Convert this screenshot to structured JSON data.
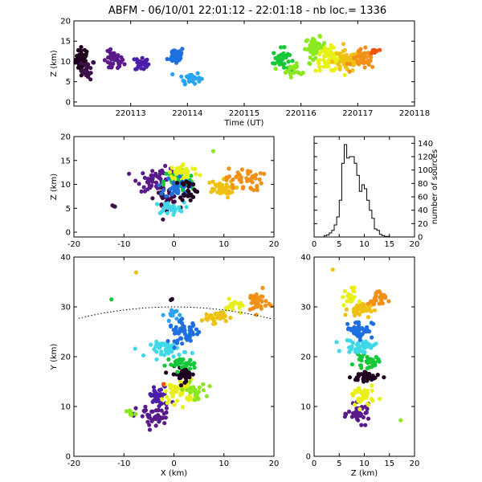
{
  "title": "ABFM - 06/10/01 22:01:12 - 22:01:18 - nb loc.=   1336",
  "colors": {
    "ramp": [
      "#200020",
      "#3c1048",
      "#5a1a8a",
      "#4b1fa8",
      "#1e6fe0",
      "#2aa3f0",
      "#3fd8e8",
      "#14c838",
      "#8ae81e",
      "#e8f018",
      "#f0c010",
      "#f09018",
      "#ee5512"
    ]
  },
  "chart_data": [
    {
      "id": "time-height",
      "type": "scatter",
      "xlabel": "Time (UT)",
      "ylabel": "Z (km)",
      "xlim": [
        220112.0,
        220118.0
      ],
      "ylim": [
        -1,
        20
      ],
      "xticks": [
        220113,
        220114,
        220115,
        220116,
        220117,
        220118
      ],
      "xtick_labels": [
        "220113",
        "220114",
        "220115",
        "220116",
        "220117",
        "220118"
      ],
      "yticks": [
        0,
        5,
        10,
        15,
        20
      ],
      "clusters": [
        {
          "x": 220112.15,
          "y": 10.5,
          "sx": 0.1,
          "sy": 2.5,
          "n": 40,
          "color": 0
        },
        {
          "x": 220112.25,
          "y": 8.0,
          "sx": 0.1,
          "sy": 2.0,
          "n": 20,
          "color": 1
        },
        {
          "x": 220112.7,
          "y": 10.0,
          "sx": 0.15,
          "sy": 2.0,
          "n": 40,
          "color": 2
        },
        {
          "x": 220113.2,
          "y": 9.5,
          "sx": 0.1,
          "sy": 1.6,
          "n": 25,
          "color": 3
        },
        {
          "x": 220113.8,
          "y": 11.5,
          "sx": 0.12,
          "sy": 1.8,
          "n": 35,
          "color": 4
        },
        {
          "x": 220114.05,
          "y": 6.0,
          "sx": 0.15,
          "sy": 1.2,
          "n": 30,
          "color": 5
        },
        {
          "x": 220115.65,
          "y": 10.5,
          "sx": 0.12,
          "sy": 2.2,
          "n": 35,
          "color": 7
        },
        {
          "x": 220115.9,
          "y": 8.0,
          "sx": 0.2,
          "sy": 1.5,
          "n": 20,
          "color": 8
        },
        {
          "x": 220116.25,
          "y": 13.5,
          "sx": 0.15,
          "sy": 2.0,
          "n": 45,
          "color": 8
        },
        {
          "x": 220116.5,
          "y": 10.5,
          "sx": 0.2,
          "sy": 2.5,
          "n": 60,
          "color": 9
        },
        {
          "x": 220116.8,
          "y": 10.0,
          "sx": 0.2,
          "sy": 2.2,
          "n": 55,
          "color": 10
        },
        {
          "x": 220117.1,
          "y": 10.5,
          "sx": 0.18,
          "sy": 2.0,
          "n": 45,
          "color": 11
        },
        {
          "x": 220117.3,
          "y": 12.5,
          "sx": 0.06,
          "sy": 0.8,
          "n": 8,
          "color": 12
        }
      ]
    },
    {
      "id": "x-z",
      "type": "scatter",
      "xlabel": "",
      "ylabel": "Z (km)",
      "xlim": [
        -20,
        20
      ],
      "ylim": [
        -1,
        20
      ],
      "xticks": [
        -20,
        -10,
        0,
        10,
        20
      ],
      "yticks": [
        0,
        5,
        10,
        15,
        20
      ],
      "clusters": [
        {
          "x": -3.0,
          "y": 11.0,
          "sx": 3.5,
          "sy": 2.0,
          "n": 60,
          "color": 2
        },
        {
          "x": -1.5,
          "y": 7.0,
          "sx": 2.0,
          "sy": 1.8,
          "n": 30,
          "color": 1
        },
        {
          "x": -1.0,
          "y": 5.0,
          "sx": 2.5,
          "sy": 1.0,
          "n": 25,
          "color": 6
        },
        {
          "x": 1.0,
          "y": 10.5,
          "sx": 2.5,
          "sy": 2.5,
          "n": 60,
          "color": 7
        },
        {
          "x": 2.0,
          "y": 12.5,
          "sx": 2.5,
          "sy": 1.5,
          "n": 45,
          "color": 9
        },
        {
          "x": 0.5,
          "y": 9.5,
          "sx": 2.0,
          "sy": 2.0,
          "n": 35,
          "color": 4
        },
        {
          "x": 3.0,
          "y": 9.0,
          "sx": 1.5,
          "sy": 2.0,
          "n": 25,
          "color": 0
        },
        {
          "x": 9.0,
          "y": 9.0,
          "sx": 2.5,
          "sy": 1.5,
          "n": 40,
          "color": 10
        },
        {
          "x": 14.0,
          "y": 11.0,
          "sx": 3.0,
          "sy": 2.0,
          "n": 45,
          "color": 11
        },
        {
          "x": -12.0,
          "y": 5.5,
          "sx": 0.3,
          "sy": 0.3,
          "n": 3,
          "color": 1
        },
        {
          "x": 8.0,
          "y": 17.0,
          "sx": 0.2,
          "sy": 0.2,
          "n": 1,
          "color": 8
        }
      ]
    },
    {
      "id": "histogram",
      "type": "bar",
      "ylabel": "number of sources",
      "xlim": [
        0,
        20
      ],
      "ylim": [
        0,
        150
      ],
      "xticks": [
        0,
        5,
        10,
        15,
        20
      ],
      "yticks": [
        0,
        20,
        40,
        60,
        80,
        100,
        120,
        140
      ],
      "ytick_labels": [
        "0",
        "20",
        "40",
        "60",
        "80",
        "100",
        "120",
        "140"
      ],
      "bin_width": 0.5,
      "bin_start": 2.0,
      "counts": [
        2,
        3,
        6,
        10,
        18,
        30,
        55,
        110,
        138,
        118,
        120,
        120,
        110,
        92,
        68,
        78,
        72,
        55,
        40,
        28,
        12,
        10,
        4,
        2,
        1,
        1
      ]
    },
    {
      "id": "x-y",
      "type": "scatter",
      "xlabel": "X (km)",
      "ylabel": "Y (km)",
      "xlim": [
        -20,
        20
      ],
      "ylim": [
        0,
        40
      ],
      "xticks": [
        -20,
        -10,
        0,
        10,
        20
      ],
      "yticks": [
        0,
        10,
        20,
        30,
        40
      ],
      "arc": {
        "cx": 0,
        "cy": -50,
        "r": 80
      },
      "clusters": [
        {
          "x": -4.0,
          "y": 8.0,
          "sx": 3.0,
          "sy": 2.0,
          "n": 45,
          "color": 2
        },
        {
          "x": -8.5,
          "y": 8.5,
          "sx": 0.8,
          "sy": 0.6,
          "n": 8,
          "color": 8
        },
        {
          "x": -3.0,
          "y": 12.0,
          "sx": 2.0,
          "sy": 2.0,
          "n": 30,
          "color": 3
        },
        {
          "x": 1.0,
          "y": 13.0,
          "sx": 2.5,
          "sy": 2.0,
          "n": 45,
          "color": 9
        },
        {
          "x": 4.0,
          "y": 13.0,
          "sx": 2.0,
          "sy": 1.5,
          "n": 25,
          "color": 8
        },
        {
          "x": 2.0,
          "y": 16.5,
          "sx": 2.0,
          "sy": 1.2,
          "n": 35,
          "color": 0
        },
        {
          "x": 1.5,
          "y": 18.5,
          "sx": 2.5,
          "sy": 1.0,
          "n": 30,
          "color": 7
        },
        {
          "x": -1.0,
          "y": 21.5,
          "sx": 3.0,
          "sy": 1.2,
          "n": 45,
          "color": 6
        },
        {
          "x": 2.0,
          "y": 25.0,
          "sx": 2.5,
          "sy": 1.8,
          "n": 50,
          "color": 4
        },
        {
          "x": 0.0,
          "y": 28.5,
          "sx": 1.5,
          "sy": 1.0,
          "n": 15,
          "color": 5
        },
        {
          "x": 8.0,
          "y": 28.0,
          "sx": 2.0,
          "sy": 1.0,
          "n": 30,
          "color": 10
        },
        {
          "x": 12.0,
          "y": 30.0,
          "sx": 1.5,
          "sy": 1.2,
          "n": 20,
          "color": 9
        },
        {
          "x": 16.5,
          "y": 31.0,
          "sx": 1.8,
          "sy": 1.8,
          "n": 35,
          "color": 11
        },
        {
          "x": -0.5,
          "y": 31.5,
          "sx": 0.2,
          "sy": 0.2,
          "n": 2,
          "color": 0
        },
        {
          "x": -12.5,
          "y": 31.5,
          "sx": 0.2,
          "sy": 0.2,
          "n": 1,
          "color": 7
        },
        {
          "x": -7.5,
          "y": 37.0,
          "sx": 0.2,
          "sy": 0.2,
          "n": 1,
          "color": 10
        },
        {
          "x": -2.0,
          "y": 14.5,
          "sx": 0.2,
          "sy": 0.2,
          "n": 2,
          "color": 12
        }
      ]
    },
    {
      "id": "z-y",
      "type": "scatter",
      "xlabel": "Z (km)",
      "ylabel": "",
      "xlim": [
        0,
        20
      ],
      "ylim": [
        0,
        40
      ],
      "xticks": [
        0,
        5,
        10,
        15,
        20
      ],
      "yticks": [
        0,
        10,
        20,
        30,
        40
      ],
      "clusters": [
        {
          "x": 9.0,
          "y": 8.5,
          "sx": 1.8,
          "sy": 1.5,
          "n": 40,
          "color": 2
        },
        {
          "x": 9.5,
          "y": 12.0,
          "sx": 2.0,
          "sy": 2.0,
          "n": 40,
          "color": 9
        },
        {
          "x": 10.5,
          "y": 16.0,
          "sx": 2.5,
          "sy": 1.2,
          "n": 35,
          "color": 0
        },
        {
          "x": 10.5,
          "y": 19.0,
          "sx": 2.0,
          "sy": 1.0,
          "n": 30,
          "color": 7
        },
        {
          "x": 9.0,
          "y": 22.0,
          "sx": 2.5,
          "sy": 1.2,
          "n": 40,
          "color": 6
        },
        {
          "x": 9.0,
          "y": 25.5,
          "sx": 2.2,
          "sy": 1.5,
          "n": 45,
          "color": 4
        },
        {
          "x": 9.0,
          "y": 29.5,
          "sx": 1.8,
          "sy": 1.2,
          "n": 35,
          "color": 10
        },
        {
          "x": 7.0,
          "y": 32.0,
          "sx": 1.2,
          "sy": 1.5,
          "n": 20,
          "color": 9
        },
        {
          "x": 12.5,
          "y": 31.5,
          "sx": 1.5,
          "sy": 1.5,
          "n": 25,
          "color": 11
        },
        {
          "x": 4.0,
          "y": 37.5,
          "sx": 0.2,
          "sy": 0.2,
          "n": 1,
          "color": 10
        },
        {
          "x": 17.0,
          "y": 7.0,
          "sx": 0.2,
          "sy": 0.2,
          "n": 1,
          "color": 8
        }
      ]
    }
  ]
}
